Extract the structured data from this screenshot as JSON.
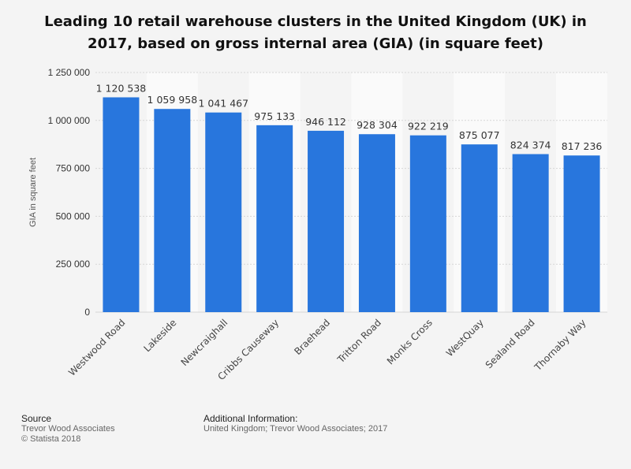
{
  "title": "Leading 10 retail warehouse clusters in the United Kingdom (UK) in 2017, based on gross internal area (GIA) (in square feet)",
  "chart_data": {
    "type": "bar",
    "categories": [
      "Westwood Road",
      "Lakeside",
      "Newcraighall",
      "Cribbs Causeway",
      "Braehead",
      "Tritton Road",
      "Monks Cross",
      "WestQuay",
      "Sealand Road",
      "Thornaby Way"
    ],
    "values": [
      1120538,
      1059958,
      1041467,
      975133,
      946112,
      928304,
      922219,
      875077,
      824374,
      817236
    ],
    "value_labels": [
      "1 120 538",
      "1 059 958",
      "1 041 467",
      "975 133",
      "946 112",
      "928 304",
      "922 219",
      "875 077",
      "824 374",
      "817 236"
    ],
    "ylabel": "GIA in square feet",
    "xlabel": "",
    "ylim": [
      0,
      1250000
    ],
    "yticks": [
      0,
      250000,
      500000,
      750000,
      1000000,
      1250000
    ],
    "ytick_labels": [
      "0",
      "250 000",
      "500 000",
      "750 000",
      "1 000 000",
      "1 250 000"
    ],
    "grid": true,
    "bar_color": "#2876dd"
  },
  "footer": {
    "source_heading": "Source",
    "source_lines": [
      "Trevor Wood Associates",
      "© Statista 2018"
    ],
    "info_heading": "Additional Information:",
    "info_text": "United Kingdom; Trevor Wood Associates; 2017"
  }
}
